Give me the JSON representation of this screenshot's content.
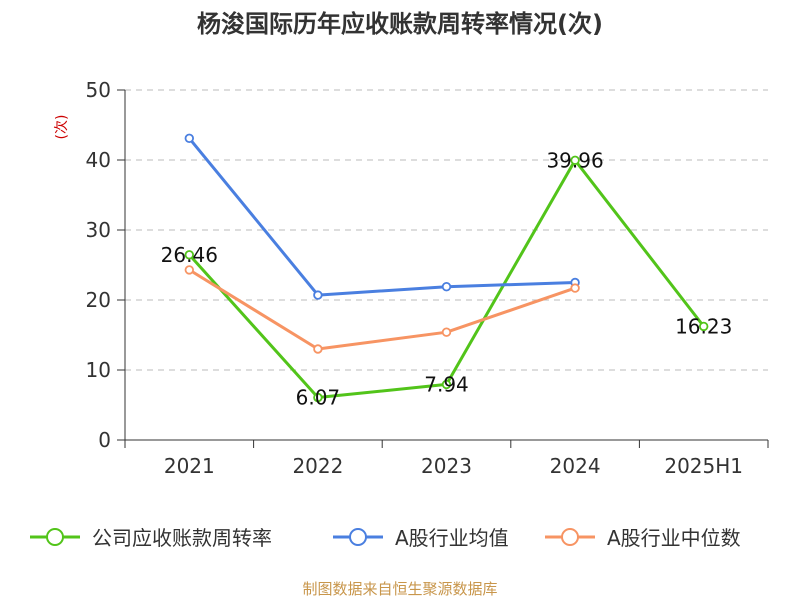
{
  "chart_data": {
    "type": "line",
    "title": "杨浚国际历年应收账款周转率情况(次)",
    "ylabel": "(次)",
    "xlabel": "",
    "categories": [
      "2021",
      "2022",
      "2023",
      "2024",
      "2025H1"
    ],
    "ylim": [
      0,
      50
    ],
    "yticks": [
      0,
      10,
      20,
      30,
      40,
      50
    ],
    "grid": true,
    "legend_position": "bottom",
    "series": [
      {
        "name": "公司应收账款周转率",
        "color": "#52c41a",
        "values": [
          26.46,
          6.07,
          7.94,
          39.96,
          16.23
        ],
        "show_labels": true
      },
      {
        "name": "A股行业均值",
        "color": "#4a7fe0",
        "values": [
          43.1,
          20.7,
          21.9,
          22.5,
          null
        ],
        "show_labels": false
      },
      {
        "name": "A股行业中位数",
        "color": "#f79463",
        "values": [
          24.3,
          13.0,
          15.4,
          21.7,
          null
        ],
        "show_labels": false
      }
    ]
  },
  "source": "制图数据来自恒生聚源数据库",
  "colors": {
    "axis": "#333333",
    "grid": "#bbbbbb",
    "ylabel": "#cc0000"
  }
}
